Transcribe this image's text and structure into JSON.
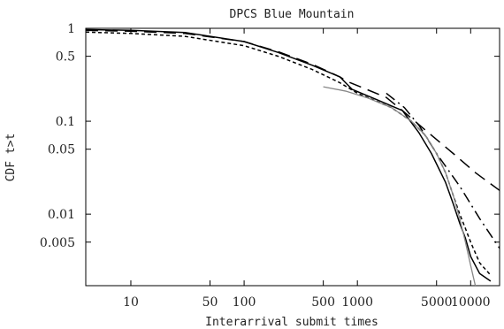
{
  "chart_data": {
    "type": "line",
    "title": "DPCS Blue Mountain",
    "xlabel": "Interarrival submit times",
    "ylabel": "CDF t>t",
    "xscale": "log",
    "yscale": "log",
    "xlim": [
      4,
      18000
    ],
    "ylim": [
      0.0017,
      1.0
    ],
    "x_ticks": [
      {
        "value": 10,
        "label": "10"
      },
      {
        "value": 50,
        "label": "50"
      },
      {
        "value": 100,
        "label": "100"
      },
      {
        "value": 500,
        "label": "500"
      },
      {
        "value": 1000,
        "label": "1000"
      },
      {
        "value": 5000,
        "label": "5000"
      },
      {
        "value": 10000,
        "label": "10000"
      }
    ],
    "y_ticks": [
      {
        "value": 1,
        "label": "1"
      },
      {
        "value": 0.5,
        "label": "0.5"
      },
      {
        "value": 0.1,
        "label": "0.1"
      },
      {
        "value": 0.05,
        "label": "0.05"
      },
      {
        "value": 0.01,
        "label": "0.01"
      },
      {
        "value": 0.005,
        "label": "0.005"
      }
    ],
    "grid": false,
    "legend": "none",
    "series": [
      {
        "style": "solid",
        "color": "#000000",
        "points": [
          [
            4,
            0.97
          ],
          [
            10,
            0.95
          ],
          [
            30,
            0.9
          ],
          [
            100,
            0.72
          ],
          [
            200,
            0.55
          ],
          [
            400,
            0.4
          ],
          [
            700,
            0.3
          ],
          [
            900,
            0.22
          ],
          [
            1500,
            0.17
          ],
          [
            2500,
            0.13
          ],
          [
            3500,
            0.075
          ],
          [
            4500,
            0.045
          ],
          [
            6000,
            0.022
          ],
          [
            7000,
            0.013
          ],
          [
            8000,
            0.008
          ],
          [
            9000,
            0.0055
          ],
          [
            10000,
            0.0035
          ],
          [
            12000,
            0.0023
          ],
          [
            15000,
            0.0019
          ]
        ]
      },
      {
        "style": "dashed-short",
        "color": "#000000",
        "points": [
          [
            4,
            0.91
          ],
          [
            10,
            0.88
          ],
          [
            30,
            0.82
          ],
          [
            100,
            0.65
          ],
          [
            200,
            0.5
          ],
          [
            400,
            0.36
          ],
          [
            700,
            0.26
          ],
          [
            1000,
            0.2
          ],
          [
            2000,
            0.14
          ],
          [
            3000,
            0.1
          ],
          [
            4000,
            0.07
          ],
          [
            5000,
            0.045
          ],
          [
            6000,
            0.028
          ],
          [
            7000,
            0.016
          ],
          [
            8000,
            0.01
          ],
          [
            9000,
            0.007
          ],
          [
            10000,
            0.005
          ],
          [
            12000,
            0.003
          ],
          [
            15000,
            0.0022
          ]
        ]
      },
      {
        "style": "dashed-long",
        "color": "#000000",
        "points": [
          [
            4,
            0.95
          ],
          [
            10,
            0.93
          ],
          [
            30,
            0.88
          ],
          [
            100,
            0.72
          ],
          [
            200,
            0.56
          ],
          [
            400,
            0.41
          ],
          [
            700,
            0.3
          ],
          [
            800,
            0.27
          ],
          [
            1800,
            0.18
          ],
          [
            2500,
            0.13
          ],
          [
            4000,
            0.08
          ],
          [
            7000,
            0.045
          ],
          [
            11000,
            0.028
          ],
          [
            18000,
            0.018
          ]
        ]
      },
      {
        "style": "dash-dot",
        "color": "#000000",
        "points": [
          [
            1800,
            0.2
          ],
          [
            2600,
            0.14
          ],
          [
            3500,
            0.09
          ],
          [
            5000,
            0.045
          ],
          [
            8000,
            0.02
          ],
          [
            12000,
            0.009
          ],
          [
            18000,
            0.0043
          ]
        ]
      },
      {
        "style": "solid",
        "color": "#888888",
        "points": [
          [
            500,
            0.235
          ],
          [
            800,
            0.21
          ],
          [
            1200,
            0.18
          ],
          [
            2000,
            0.14
          ],
          [
            3000,
            0.1
          ],
          [
            4000,
            0.07
          ],
          [
            5000,
            0.045
          ],
          [
            6000,
            0.028
          ],
          [
            7000,
            0.016
          ],
          [
            8000,
            0.009
          ],
          [
            9000,
            0.005
          ],
          [
            10000,
            0.0028
          ],
          [
            11000,
            0.0017
          ]
        ]
      }
    ]
  }
}
